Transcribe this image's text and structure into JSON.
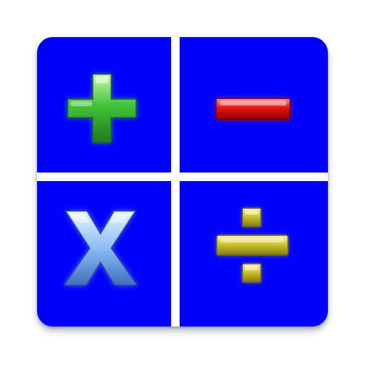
{
  "app_icon": {
    "tile_color": "#0000ff",
    "divider_color": "#ffffff",
    "symbols": [
      {
        "name": "plus-icon",
        "color": "#2fb52f"
      },
      {
        "name": "minus-icon",
        "color": "#d80000"
      },
      {
        "name": "multiply-icon",
        "color": "#8fbff5"
      },
      {
        "name": "divide-icon",
        "color": "#c9c22a"
      }
    ]
  }
}
